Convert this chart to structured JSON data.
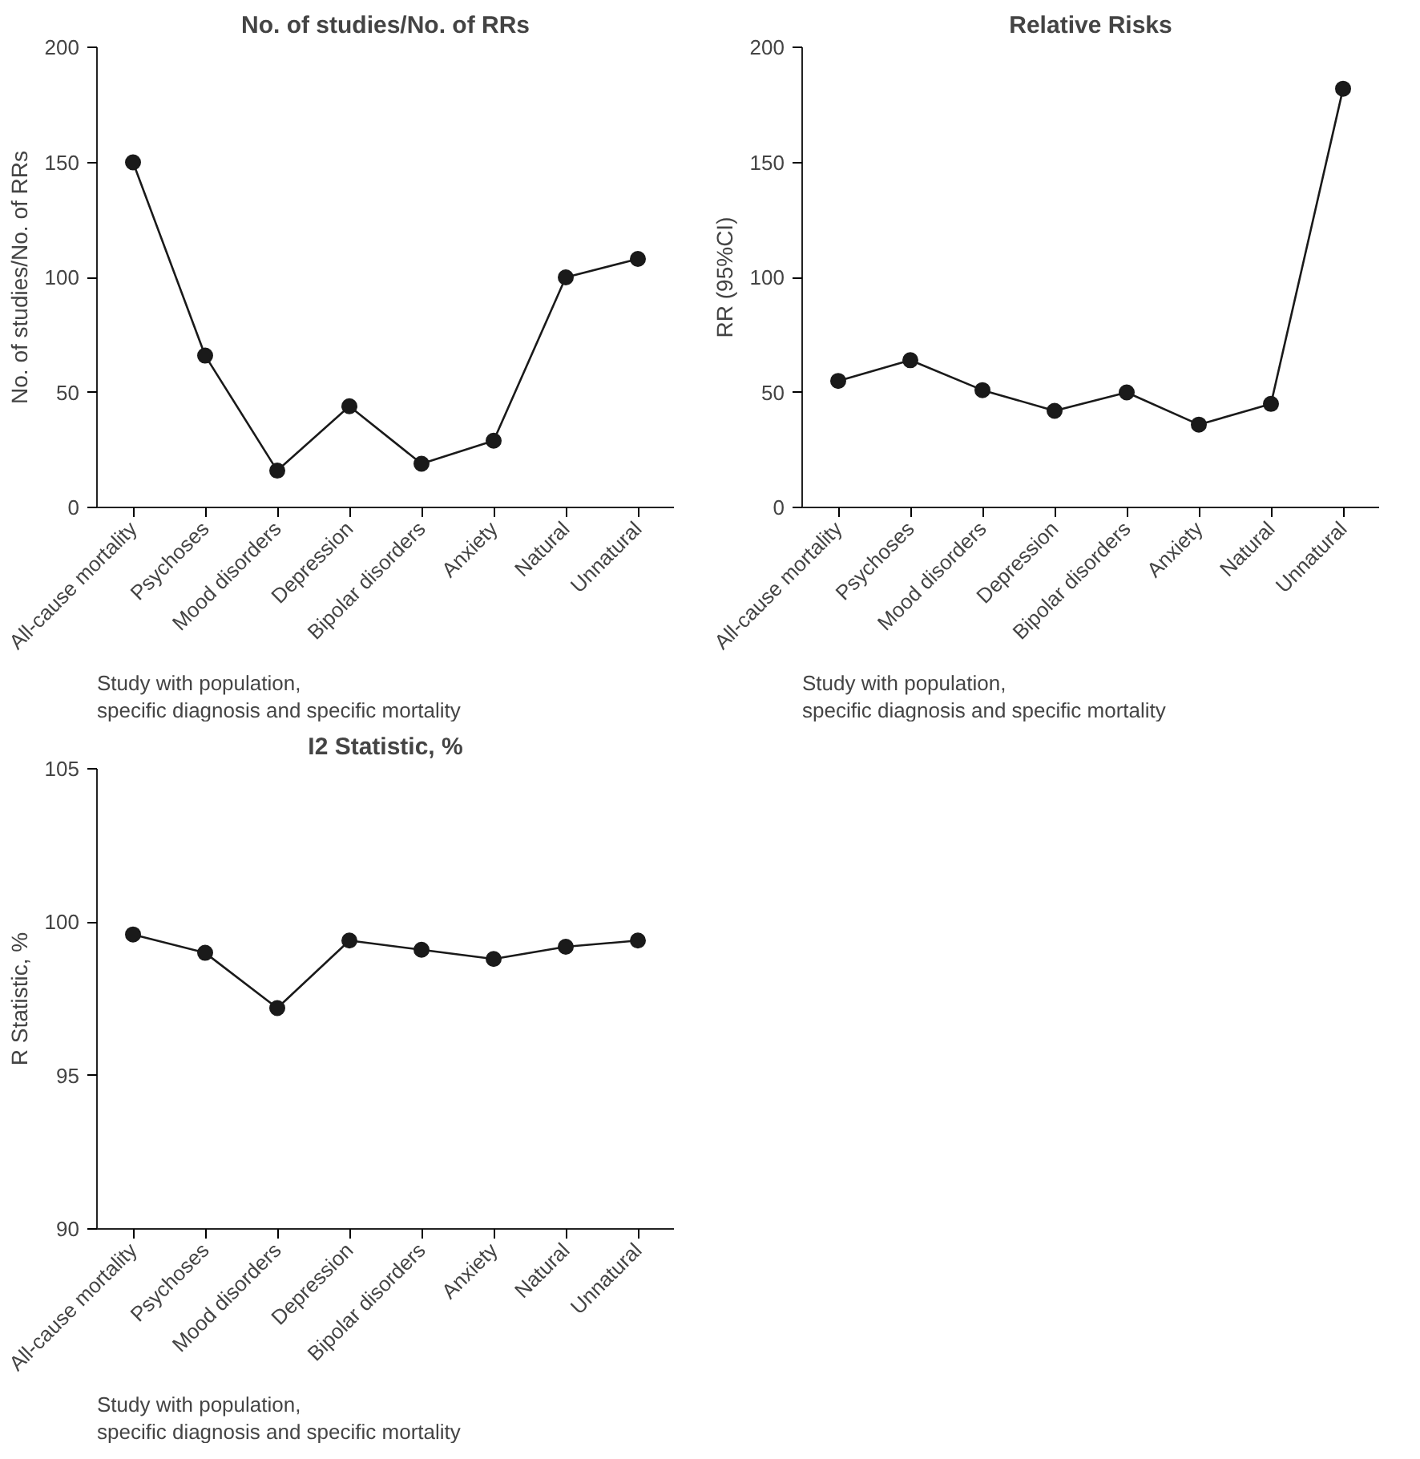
{
  "chart_data": [
    {
      "type": "line",
      "title": "No. of studies/No. of RRs",
      "ylabel": "No. of studies/No. of RRs",
      "categories": [
        "All-cause mortality",
        "Psychoses",
        "Mood disorders",
        "Depression",
        "Bipolar disorders",
        "Anxiety",
        "Natural",
        "Unnatural"
      ],
      "series": [
        {
          "color": "#1a1a1a",
          "values": [
            150,
            66,
            16,
            44,
            19,
            29,
            100,
            108
          ]
        }
      ],
      "ylim": [
        0,
        200
      ],
      "yticks": [
        0,
        50,
        100,
        150,
        200
      ],
      "grid": false,
      "marker": "circle",
      "line_style": "solid",
      "annotations": [
        "Study with population,\nspecific diagnosis and specific mortality"
      ]
    },
    {
      "type": "line",
      "title": "Relative Risks",
      "ylabel": "RR (95%CI)",
      "categories": [
        "All-cause mortality",
        "Psychoses",
        "Mood disorders",
        "Depression",
        "Bipolar disorders",
        "Anxiety",
        "Natural",
        "Unnatural"
      ],
      "series": [
        {
          "color": "#1a1a1a",
          "values": [
            55,
            64,
            51,
            42,
            50,
            36,
            45,
            182
          ]
        }
      ],
      "ylim": [
        0,
        200
      ],
      "yticks": [
        0,
        50,
        100,
        150,
        200
      ],
      "grid": false,
      "marker": "circle",
      "line_style": "solid",
      "annotations": [
        "Study with population,\nspecific diagnosis and specific mortality"
      ]
    },
    {
      "type": "line",
      "title": "I2 Statistic, %",
      "ylabel": "R Statistic, %",
      "categories": [
        "All-cause mortality",
        "Psychoses",
        "Mood disorders",
        "Depression",
        "Bipolar disorders",
        "Anxiety",
        "Natural",
        "Unnatural"
      ],
      "series": [
        {
          "color": "#1a1a1a",
          "values": [
            99.6,
            99.0,
            97.2,
            99.4,
            99.1,
            98.8,
            99.2,
            99.4
          ]
        }
      ],
      "ylim": [
        90,
        105
      ],
      "yticks": [
        90,
        95,
        100,
        105
      ],
      "grid": false,
      "marker": "circle",
      "line_style": "solid",
      "annotations": [
        "Study with population,\nspecific diagnosis and specific mortality"
      ]
    }
  ]
}
